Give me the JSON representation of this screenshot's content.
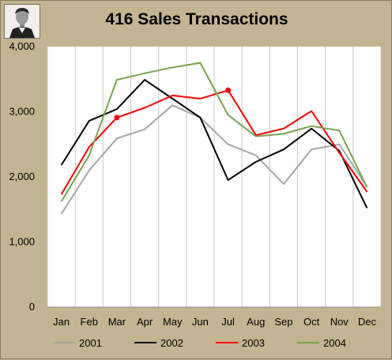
{
  "chart_data": {
    "type": "line",
    "title": "416 Sales Transactions",
    "categories": [
      "Jan",
      "Feb",
      "Mar",
      "Apr",
      "May",
      "Jun",
      "Jul",
      "Aug",
      "Sep",
      "Oct",
      "Nov",
      "Dec"
    ],
    "ylim": [
      0,
      4000
    ],
    "yticks": [
      "0",
      "1,000",
      "2,000",
      "3,000",
      "4,000"
    ],
    "ytick_values": [
      0,
      1000,
      2000,
      3000,
      4000
    ],
    "grid": "vertical",
    "legend": "bottom",
    "series": [
      {
        "name": "2001",
        "color": "#a6a6a6",
        "values": [
          1430,
          2100,
          2590,
          2730,
          3100,
          2910,
          2500,
          2330,
          1890,
          2420,
          2500,
          1850
        ]
      },
      {
        "name": "2002",
        "color": "#000000",
        "values": [
          2180,
          2860,
          3040,
          3490,
          3200,
          2910,
          1950,
          2230,
          2420,
          2740,
          2400,
          1520
        ]
      },
      {
        "name": "2003",
        "color": "#ff0000",
        "values": [
          1730,
          2460,
          2910,
          3060,
          3250,
          3200,
          3330,
          2640,
          2740,
          3010,
          2370,
          1770
        ],
        "markers": [
          2,
          6
        ]
      },
      {
        "name": "2004",
        "color": "#77a54a",
        "values": [
          1620,
          2330,
          3490,
          3590,
          3680,
          3750,
          2950,
          2620,
          2660,
          2780,
          2710,
          1840
        ]
      }
    ]
  }
}
